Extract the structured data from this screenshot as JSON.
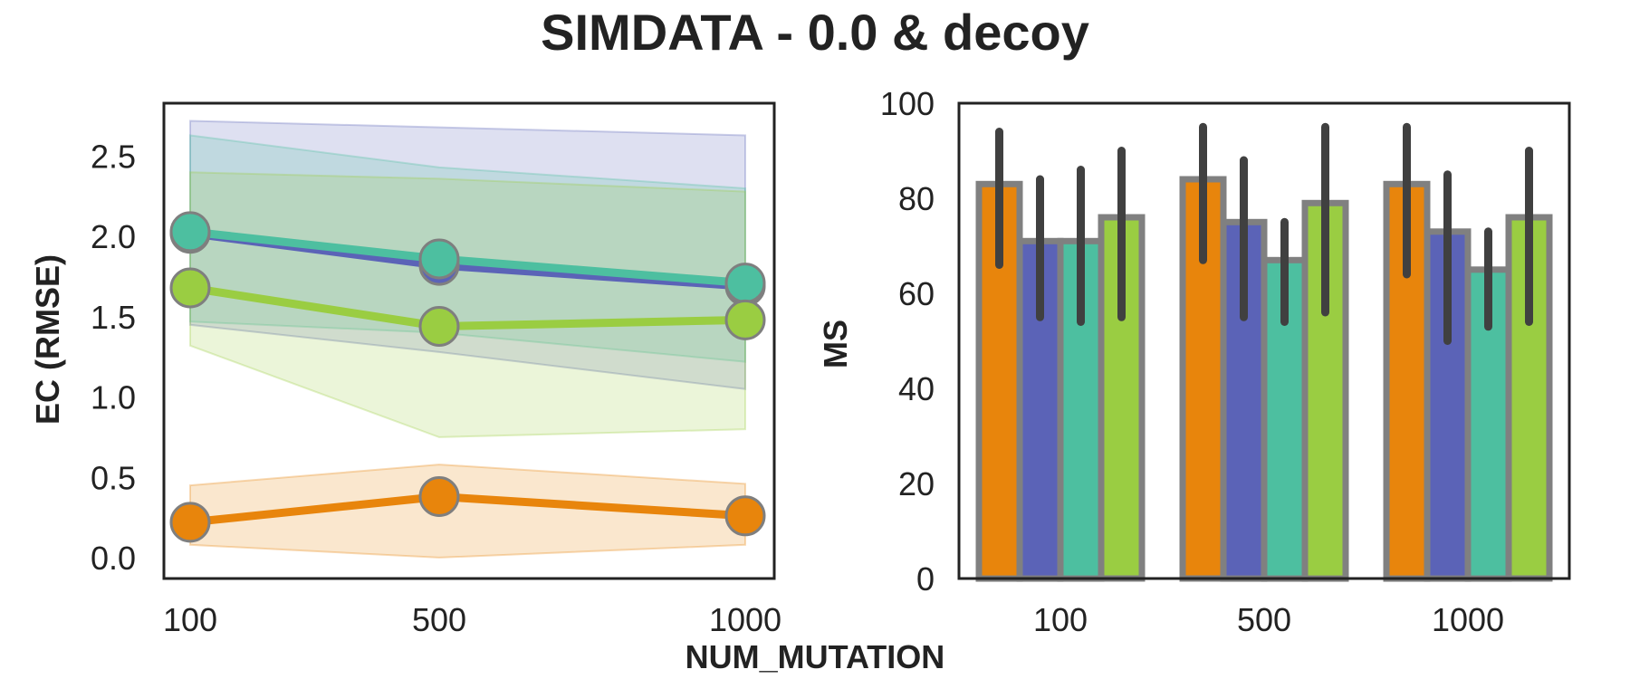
{
  "title": "SIMDATA - 0.0 & decoy",
  "shared_xlabel": "NUM_MUTATION",
  "colors": {
    "orange": "#e8850c",
    "indigo": "#5b63b7",
    "teal": "#4dbfa0",
    "green": "#9acd42",
    "bar_edge": "#808080",
    "errorbar": "#404040",
    "frame": "#222222"
  },
  "chart_data": [
    {
      "type": "line",
      "ylabel": "EC (RMSE)",
      "x": [
        100,
        500,
        1000
      ],
      "x_ticks": [
        "100",
        "500",
        "1000"
      ],
      "ylim": [
        -0.13,
        2.83
      ],
      "y_ticks": [
        "0.0",
        "0.5",
        "1.0",
        "1.5",
        "2.0",
        "2.5"
      ],
      "grid": false,
      "series": [
        {
          "color": "#5b63b7",
          "values": [
            2.02,
            1.82,
            1.69
          ],
          "ci_low": [
            1.45,
            1.28,
            1.05
          ],
          "ci_high": [
            2.72,
            2.68,
            2.63
          ]
        },
        {
          "color": "#4dbfa0",
          "values": [
            2.03,
            1.86,
            1.71
          ],
          "ci_low": [
            1.47,
            1.4,
            1.22
          ],
          "ci_high": [
            2.63,
            2.43,
            2.3
          ]
        },
        {
          "color": "#9acd42",
          "values": [
            1.68,
            1.44,
            1.48
          ],
          "ci_low": [
            1.32,
            0.75,
            0.8
          ],
          "ci_high": [
            2.4,
            2.36,
            2.28
          ]
        },
        {
          "color": "#e8850c",
          "values": [
            0.22,
            0.38,
            0.26
          ],
          "ci_low": [
            0.08,
            0.0,
            0.08
          ],
          "ci_high": [
            0.45,
            0.58,
            0.46
          ]
        }
      ]
    },
    {
      "type": "bar",
      "ylabel": "MS",
      "categories": [
        "100",
        "500",
        "1000"
      ],
      "ylim": [
        0,
        100
      ],
      "y_ticks": [
        "0",
        "20",
        "40",
        "60",
        "80",
        "100"
      ],
      "grid": false,
      "series": [
        {
          "color": "#e8850c",
          "values": [
            83,
            84,
            83
          ],
          "err_low": [
            66,
            67,
            64
          ],
          "err_high": [
            94,
            95,
            95
          ]
        },
        {
          "color": "#5b63b7",
          "values": [
            71,
            75,
            73
          ],
          "err_low": [
            55,
            55,
            50
          ],
          "err_high": [
            84,
            88,
            85
          ]
        },
        {
          "color": "#4dbfa0",
          "values": [
            71,
            67,
            65
          ],
          "err_low": [
            54,
            54,
            53
          ],
          "err_high": [
            86,
            75,
            73
          ]
        },
        {
          "color": "#9acd42",
          "values": [
            76,
            79,
            76
          ],
          "err_low": [
            55,
            56,
            54
          ],
          "err_high": [
            90,
            95,
            90
          ]
        }
      ]
    }
  ]
}
